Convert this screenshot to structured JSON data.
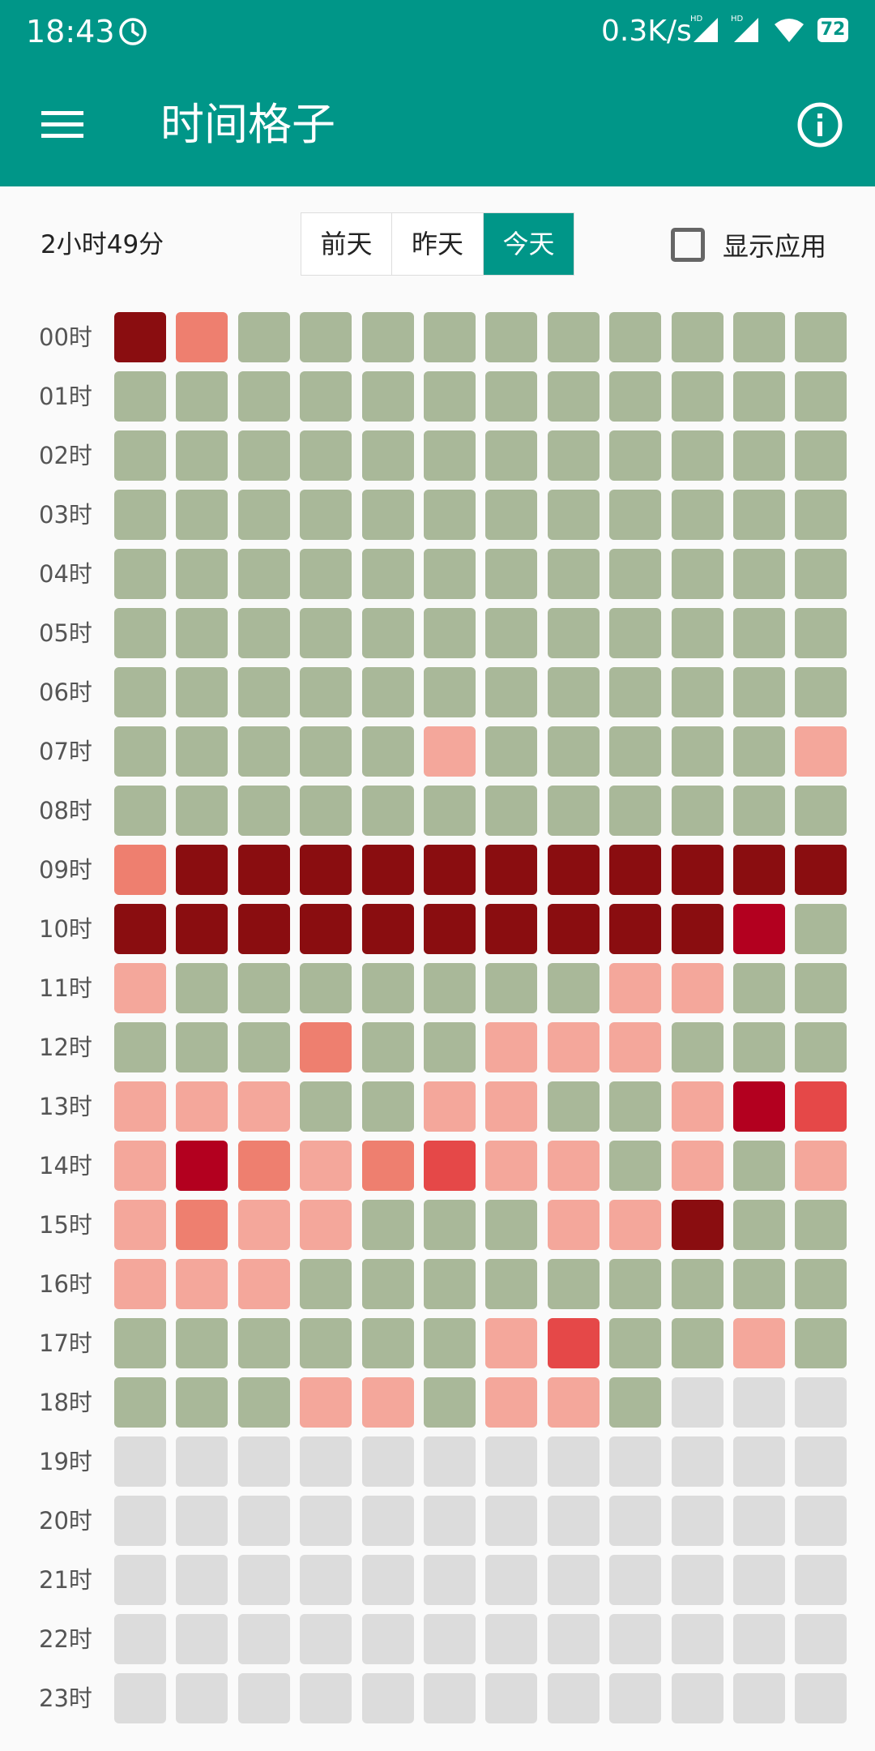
{
  "status_bar": {
    "time": "18:43",
    "network_speed": "0.3K/s",
    "signal_1_label": "HD",
    "signal_2_label": "HD",
    "battery": "72",
    "icons": [
      "timer-icon",
      "signal-hd-icon",
      "signal-hd-icon",
      "wifi-icon",
      "battery-icon"
    ]
  },
  "toolbar": {
    "title": "时间格子",
    "menu_icon": "menu-icon",
    "info_icon": "info-icon"
  },
  "summary": {
    "total": "2小时49分"
  },
  "day_selector": {
    "options": [
      "前天",
      "昨天",
      "今天"
    ],
    "selected": "今天"
  },
  "show_apps": {
    "label": "显示应用",
    "checked": false
  },
  "colors": {
    "primary": "#009688",
    "idle": "#a9b899",
    "future": "#dcdcdc",
    "light": "#f4a79b",
    "medium": "#ee7f6f",
    "high": "#e54848",
    "higher": "#b3001f",
    "max": "#8a0d10"
  },
  "grid": {
    "hours": [
      "00时",
      "01时",
      "02时",
      "03时",
      "04时",
      "05时",
      "06时",
      "07时",
      "08时",
      "09时",
      "10时",
      "11时",
      "12时",
      "13时",
      "14时",
      "15时",
      "16时",
      "17时",
      "18时",
      "19时",
      "20时",
      "21时",
      "22时",
      "23时"
    ],
    "legend_note": "cell codes: g=idle, e=future, 1=light, 2=medium, 3=high, 4=higher, 5=max",
    "rows": [
      "5 2 g g g g g g g g g g",
      "g g g g g g g g g g g g",
      "g g g g g g g g g g g g",
      "g g g g g g g g g g g g",
      "g g g g g g g g g g g g",
      "g g g g g g g g g g g g",
      "g g g g g g g g g g g g",
      "g g g g g 1 g g g g g 1",
      "g g g g g g g g g g g g",
      "2 5 5 5 5 5 5 5 5 5 5 5",
      "5 5 5 5 5 5 5 5 5 5 4 g",
      "1 g g g g g g g 1 1 g g",
      "g g g 2 g g 1 1 1 g g g",
      "1 1 1 g g 1 1 g g 1 4 3",
      "1 4 2 1 2 3 1 1 g 1 g 1",
      "1 2 1 1 g g g 1 1 5 g g",
      "1 1 1 g g g g g g g g g",
      "g g g g g g 1 3 g g 1 g",
      "g g g 1 1 g 1 1 g e e e",
      "e e e e e e e e e e e e",
      "e e e e e e e e e e e e",
      "e e e e e e e e e e e e",
      "e e e e e e e e e e e e",
      "e e e e e e e e e e e e"
    ]
  }
}
